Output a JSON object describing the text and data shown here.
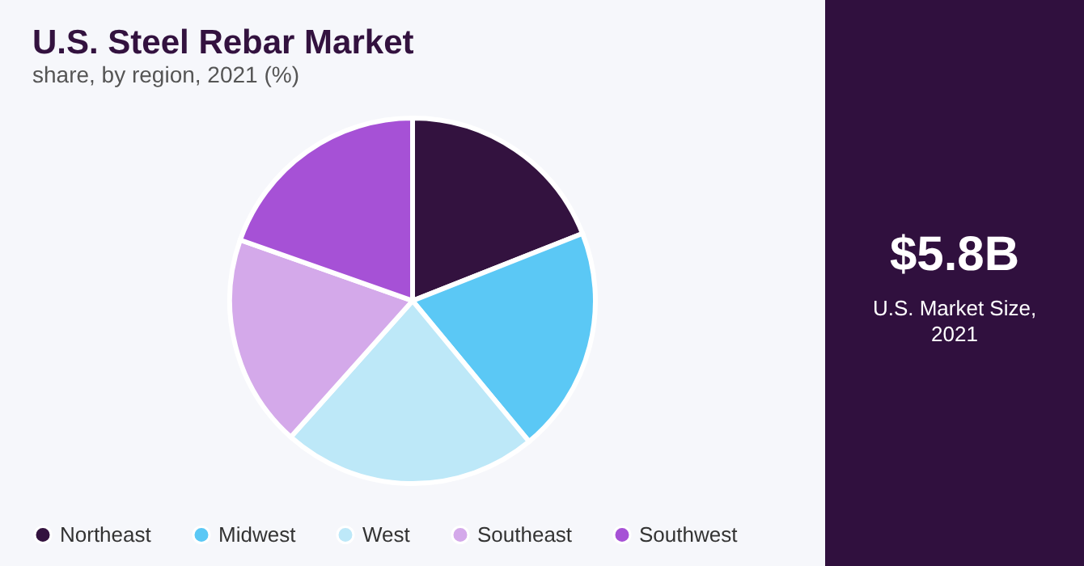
{
  "chart_data": [
    {
      "type": "pie",
      "title": "U.S. Steel Rebar Market",
      "subtitle": "share, by region, 2021 (%)",
      "categories": [
        "Northeast",
        "Midwest",
        "West",
        "Southeast",
        "Southwest"
      ],
      "values": [
        19,
        20,
        22.6,
        18.8,
        19.6
      ],
      "colors": [
        "#33123f",
        "#5bc8f5",
        "#bde8f8",
        "#d4a9ea",
        "#a651d6"
      ],
      "legend": "bottom"
    },
    {
      "type": "other",
      "title": "$5.8B",
      "subtitle": "U.S. Market Size, 2021"
    }
  ]
}
